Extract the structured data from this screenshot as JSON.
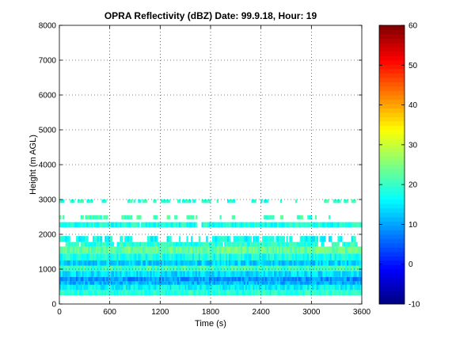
{
  "chart_data": {
    "type": "heatmap",
    "title": "OPRA Reflectivity (dBZ)  Date: 99.9.18, Hour: 19",
    "xlabel": "Time (s)",
    "ylabel": "Height (m AGL)",
    "xlim": [
      0,
      3600
    ],
    "ylim": [
      0,
      8000
    ],
    "xticks": [
      0,
      600,
      1200,
      1800,
      2400,
      3000,
      3600
    ],
    "yticks": [
      0,
      1000,
      2000,
      3000,
      4000,
      5000,
      6000,
      7000,
      8000
    ],
    "colorbar": {
      "range": [
        -10,
        60
      ],
      "ticks": [
        -10,
        0,
        10,
        20,
        30,
        40,
        50,
        60
      ],
      "colormap": "jet"
    },
    "grid": true,
    "layers": [
      {
        "height_range": [
          250,
          400
        ],
        "dbz": 19,
        "coverage": 1.0
      },
      {
        "height_range": [
          400,
          550
        ],
        "dbz": 16,
        "coverage": 1.0
      },
      {
        "height_range": [
          550,
          650
        ],
        "dbz": 11,
        "coverage": 1.0
      },
      {
        "height_range": [
          650,
          780
        ],
        "dbz": 9,
        "coverage": 1.0
      },
      {
        "height_range": [
          780,
          950
        ],
        "dbz": 14,
        "coverage": 1.0
      },
      {
        "height_range": [
          950,
          1100
        ],
        "dbz": 21,
        "coverage": 1.0
      },
      {
        "height_range": [
          1100,
          1250
        ],
        "dbz": 13,
        "coverage": 1.0
      },
      {
        "height_range": [
          1250,
          1450
        ],
        "dbz": 18,
        "coverage": 1.0
      },
      {
        "height_range": [
          1450,
          1650
        ],
        "dbz": 23,
        "coverage": 1.0
      },
      {
        "height_range": [
          1650,
          1780
        ],
        "dbz": 19,
        "coverage": 0.95
      },
      {
        "height_range": [
          1780,
          1950
        ],
        "dbz": 17,
        "coverage": 0.6
      },
      {
        "height_range": [
          2200,
          2350
        ],
        "dbz": 18,
        "coverage": 0.95
      },
      {
        "height_range": [
          2430,
          2550
        ],
        "dbz": 21,
        "coverage": 0.3
      },
      {
        "height_range": [
          2900,
          3000
        ],
        "dbz": 19,
        "coverage": 0.45
      }
    ]
  }
}
